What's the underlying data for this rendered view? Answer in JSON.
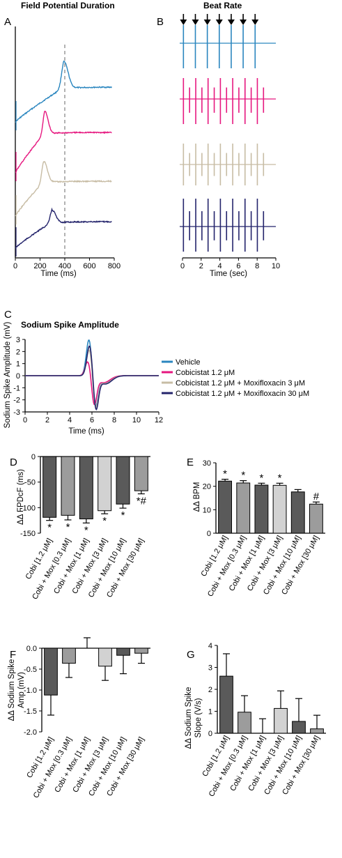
{
  "colors": {
    "vehicle": "#2a86bf",
    "cobi": "#e6177f",
    "mox3": "#c7bca4",
    "mox30": "#23236b",
    "bar_dark": "#5a5a5a",
    "bar_mid": "#9c9c9c",
    "bar_light": "#d2d2d2"
  },
  "panels": [
    {
      "letter": "A",
      "title": "Field Potential Duration",
      "xlabel": "Time (ms)",
      "xticks": [
        "0",
        "200",
        "400",
        "600",
        "800"
      ]
    },
    {
      "letter": "B",
      "title": "Beat Rate",
      "xlabel": "Time (sec)",
      "xticks": [
        "0",
        "2",
        "4",
        "6",
        "8",
        "10"
      ],
      "arrow_icon": "down-arrow-icon"
    },
    {
      "letter": "C",
      "title": "Sodium Spike Amplitude",
      "xlabel": "Time (ms)",
      "ylabel": "Sodium Spike Amplitude (mV)",
      "xticks": [
        "0",
        "2",
        "4",
        "6",
        "8",
        "10",
        "12"
      ],
      "yticks": [
        "3",
        "2",
        "1",
        "0",
        "-1",
        "-2",
        "-3"
      ]
    },
    {
      "letter": "D",
      "ylabel": "ΔΔ FPDcF (ms)",
      "yticks": [
        "0",
        "-50",
        "-100",
        "-150"
      ]
    },
    {
      "letter": "E",
      "ylabel": "ΔΔ BPM",
      "yticks": [
        "30",
        "20",
        "10",
        "0"
      ]
    },
    {
      "letter": "F",
      "ylabel_line1": "ΔΔ Sodium Spike",
      "ylabel_line2": "Amp (mV)",
      "yticks": [
        "0.0",
        "-0.5",
        "-1.0",
        "-1.5",
        "-2.0"
      ]
    },
    {
      "letter": "G",
      "ylabel_line1": "ΔΔ Sodium Spike",
      "ylabel_line2": "Slope (V/s)",
      "yticks": [
        "4",
        "3",
        "2",
        "1",
        "0"
      ]
    }
  ],
  "legend": [
    {
      "label": "Vehicle",
      "color": "#2a86bf"
    },
    {
      "label": "Cobicistat 1.2 μM",
      "color": "#e6177f"
    },
    {
      "label": "Cobicistat 1.2 μM + Moxifloxacin 3 μM",
      "color": "#c7bca4"
    },
    {
      "label": "Cobicistat 1.2 μM + Moxifloxacin 30 μM",
      "color": "#23236b"
    }
  ],
  "chart_data": [
    {
      "type": "bar",
      "panel": "D",
      "categories": [
        "Cobi [1.2 μM]",
        "Cobi + Mox [0.3 μM]",
        "Cobi + Mox [1 μM]",
        "Cobi + Mox [3 μM]",
        "Cobi + Mox [10 μM]",
        "Cobi + Mox [30 μM]"
      ],
      "values": [
        -119,
        -115,
        -122,
        -106,
        -93,
        -67
      ],
      "errors": [
        6,
        9,
        8,
        6,
        8,
        6
      ],
      "ylim": [
        -150,
        0
      ],
      "annotations": [
        "*",
        "*",
        "*",
        "*",
        "*",
        "*#"
      ]
    },
    {
      "type": "bar",
      "panel": "E",
      "categories": [
        "Cobi [1.2 μM]",
        "Cobi + Mox [0.3 μM]",
        "Cobi + Mox [1 μM]",
        "Cobi + Mox [3 μM]",
        "Cobi + Mox [10 μM]",
        "Cobi + Mox [30 μM]"
      ],
      "values": [
        22.2,
        21.4,
        20.5,
        20.4,
        17.6,
        12.4
      ],
      "errors": [
        0.8,
        1.0,
        0.8,
        0.9,
        1.0,
        0.9
      ],
      "ylim": [
        0,
        30
      ],
      "annotations": [
        "*",
        "*",
        "*",
        "*",
        "",
        "#"
      ]
    },
    {
      "type": "bar",
      "panel": "F",
      "categories": [
        "Cobi [1.2 μM]",
        "Cobi + Mox [0.3 μM]",
        "Cobi + Mox [1 μM]",
        "Cobi + Mox [3 μM]",
        "Cobi + Mox [10 μM]",
        "Cobi + Mox [30 μM]"
      ],
      "values": [
        -1.12,
        -0.36,
        0.0,
        -0.43,
        -0.17,
        -0.12
      ],
      "errors": [
        0.48,
        0.34,
        0.25,
        0.34,
        0.44,
        0.24
      ],
      "ylim": [
        -2.0,
        0.0
      ]
    },
    {
      "type": "bar",
      "panel": "G",
      "categories": [
        "Cobi [1.2 μM]",
        "Cobi + Mox [0.3 μM]",
        "Cobi + Mox [1 μM]",
        "Cobi + Mox [3 μM]",
        "Cobi + Mox [10 μM]",
        "Cobi + Mox [30 μM]"
      ],
      "values": [
        2.6,
        0.96,
        0.0,
        1.13,
        0.54,
        0.2
      ],
      "errors": [
        1.02,
        0.75,
        0.66,
        0.8,
        1.04,
        0.62
      ],
      "ylim": [
        0,
        4
      ]
    },
    {
      "type": "line",
      "panel": "C",
      "xlim": [
        0,
        12
      ],
      "ylim": [
        -3,
        3
      ],
      "series": [
        {
          "name": "Vehicle",
          "peak": 3.1,
          "trough": -2.5
        },
        {
          "name": "Cobicistat 1.2 μM",
          "peak": 1.25,
          "trough": -2.3
        },
        {
          "name": "Cobicistat 1.2 μM + Moxifloxacin 3 μM",
          "peak": 2.25,
          "trough": -2.55
        },
        {
          "name": "Cobicistat 1.2 μM + Moxifloxacin 30 μM",
          "peak": 2.6,
          "trough": -2.75
        }
      ]
    },
    {
      "type": "line",
      "panel": "A",
      "xlim": [
        0,
        800
      ],
      "series": [
        {
          "name": "Vehicle",
          "peak_x": 395
        },
        {
          "name": "Cobicistat 1.2 μM",
          "peak_x": 240
        },
        {
          "name": "Cobicistat 1.2 μM + Moxifloxacin 3 μM",
          "peak_x": 230
        },
        {
          "name": "Cobicistat 1.2 μM + Moxifloxacin 30 μM",
          "peak_x": 300
        }
      ],
      "reference_x": 400
    },
    {
      "type": "line",
      "panel": "B",
      "xlim": [
        0,
        10
      ],
      "series": [
        {
          "name": "Vehicle",
          "beats": 7
        },
        {
          "name": "Cobicistat 1.2 μM",
          "beats": 14
        },
        {
          "name": "Cobicistat 1.2 μM + Moxifloxacin 3 μM",
          "beats": 14
        },
        {
          "name": "Cobicistat 1.2 μM + Moxifloxacin 30 μM",
          "beats": 14
        }
      ]
    }
  ]
}
